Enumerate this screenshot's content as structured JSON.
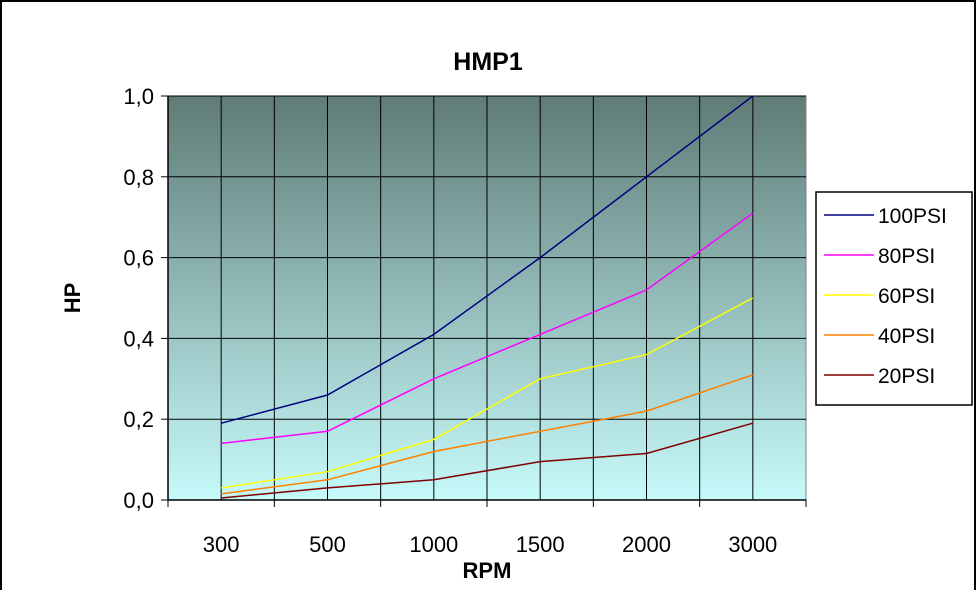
{
  "chart_data": {
    "type": "line",
    "title": "HMP1",
    "xlabel": "RPM",
    "ylabel": "HP",
    "categories": [
      "300",
      "500",
      "1000",
      "1500",
      "2000",
      "3000"
    ],
    "ylim": [
      0,
      1.0
    ],
    "y_ticks": [
      "0,0",
      "0,2",
      "0,4",
      "0,6",
      "0,8",
      "1,0"
    ],
    "y_tick_values": [
      0,
      0.2,
      0.4,
      0.6,
      0.8,
      1.0
    ],
    "grid": true,
    "legend_position": "right",
    "plot_gradient": {
      "top": "#5f7b76",
      "bottom": "#c6fafa"
    },
    "series": [
      {
        "name": "100PSI",
        "color": "#000080",
        "values": [
          0.19,
          0.26,
          0.41,
          0.6,
          0.8,
          1.0
        ]
      },
      {
        "name": "80PSI",
        "color": "#ff00ff",
        "values": [
          0.14,
          0.17,
          0.3,
          0.41,
          0.52,
          0.71
        ]
      },
      {
        "name": "60PSI",
        "color": "#ffff00",
        "values": [
          0.03,
          0.07,
          0.15,
          0.3,
          0.36,
          0.5
        ]
      },
      {
        "name": "40PSI",
        "color": "#ff8000",
        "values": [
          0.015,
          0.05,
          0.12,
          0.17,
          0.22,
          0.31
        ]
      },
      {
        "name": "20PSI",
        "color": "#800000",
        "values": [
          0.005,
          0.03,
          0.05,
          0.095,
          0.115,
          0.19
        ]
      }
    ]
  }
}
